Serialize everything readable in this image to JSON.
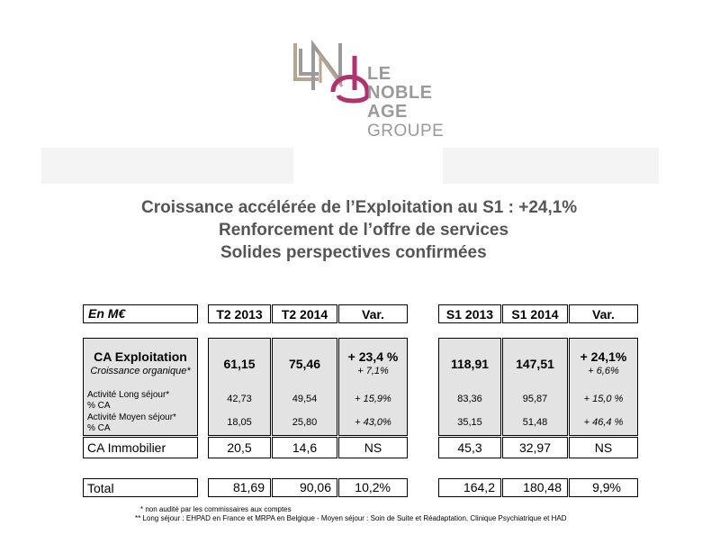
{
  "logo": {
    "line1": "LE",
    "line2": "NOBLE",
    "line3": "AGE",
    "line4": "GROUPE",
    "colors": {
      "magenta": "#b0336f",
      "gray": "#9a9a9a",
      "taupe": "#b9a48f"
    }
  },
  "headlines": [
    "Croissance accélérée de l’Exploitation au S1 : +24,1%",
    "Renforcement de l’offre de services",
    "Solides perspectives confirmées"
  ],
  "table": {
    "header": {
      "label": "En M€",
      "t2_2013": "T2 2013",
      "t2_2014": "T2 2014",
      "var_q": "Var.",
      "s1_2013": "S1 2013",
      "s1_2014": "S1 2014",
      "var_s": "Var."
    },
    "ca_exploitation": {
      "label": "CA Exploitation",
      "sublabel": "Croissance organique*",
      "t2_2013": "61,15",
      "t2_2014": "75,46",
      "var_q": "+ 23,4 %",
      "var_q_org": "+ 7,1%",
      "s1_2013": "118,91",
      "s1_2014": "147,51",
      "var_s": "+ 24,1%",
      "var_s_org": "+ 6,6%"
    },
    "long_sejour": {
      "label": "Activité Long séjour*",
      "sublabel": "% CA",
      "t2_2013": "42,73",
      "t2_2014": "49,54",
      "var_q": "+ 15,9%",
      "s1_2013": "83,36",
      "s1_2014": "95,87",
      "var_s": "+ 15,0 %"
    },
    "moyen_sejour": {
      "label": "Activité Moyen séjour*",
      "sublabel": "% CA",
      "t2_2013": "18,05",
      "t2_2014": "25,80",
      "var_q": "+ 43,0%",
      "s1_2013": "35,15",
      "s1_2014": "51,48",
      "var_s": "+ 46,4 %"
    },
    "ca_immobilier": {
      "label": "CA Immobilier",
      "t2_2013": "20,5",
      "t2_2014": "14,6",
      "var_q": "NS",
      "s1_2013": "45,3",
      "s1_2014": "32,97",
      "var_s": "NS"
    },
    "total": {
      "label": "Total",
      "t2_2013": "81,69",
      "t2_2014": "90,06",
      "var_q": "10,2%",
      "s1_2013": "164,2",
      "s1_2014": "180,48",
      "var_s": "9,9%"
    }
  },
  "notes": {
    "note1": "* non audité par les commissaires aux comptes",
    "note2": "**  Long séjour : EHPAD en France et MRPA en Belgique   -  Moyen séjour : Soin de Suite et Réadaptation, Clinique Psychiatrique et HAD"
  }
}
